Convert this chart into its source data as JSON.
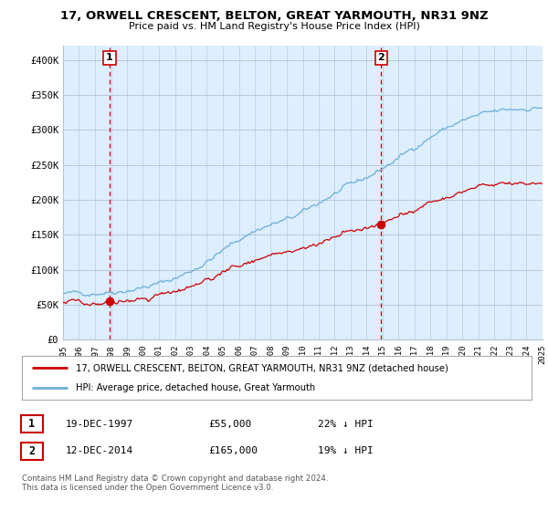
{
  "title": "17, ORWELL CRESCENT, BELTON, GREAT YARMOUTH, NR31 9NZ",
  "subtitle": "Price paid vs. HM Land Registry's House Price Index (HPI)",
  "ylim": [
    0,
    420000
  ],
  "yticks": [
    0,
    50000,
    100000,
    150000,
    200000,
    250000,
    300000,
    350000,
    400000
  ],
  "ytick_labels": [
    "£0",
    "£50K",
    "£100K",
    "£150K",
    "£200K",
    "£250K",
    "£300K",
    "£350K",
    "£400K"
  ],
  "hpi_color": "#6baed6",
  "price_color": "#cc0000",
  "chart_bg": "#ddeeff",
  "sale1_price": 55000,
  "sale2_price": 165000,
  "legend_line1": "17, ORWELL CRESCENT, BELTON, GREAT YARMOUTH, NR31 9NZ (detached house)",
  "legend_line2": "HPI: Average price, detached house, Great Yarmouth",
  "footnote1_label": "1",
  "footnote1_date": "19-DEC-1997",
  "footnote1_price": "£55,000",
  "footnote1_pct": "22% ↓ HPI",
  "footnote2_label": "2",
  "footnote2_date": "12-DEC-2014",
  "footnote2_price": "£165,000",
  "footnote2_pct": "19% ↓ HPI",
  "copyright": "Contains HM Land Registry data © Crown copyright and database right 2024.\nThis data is licensed under the Open Government Licence v3.0.",
  "background_color": "#ffffff",
  "grid_color": "#b0c4d8"
}
